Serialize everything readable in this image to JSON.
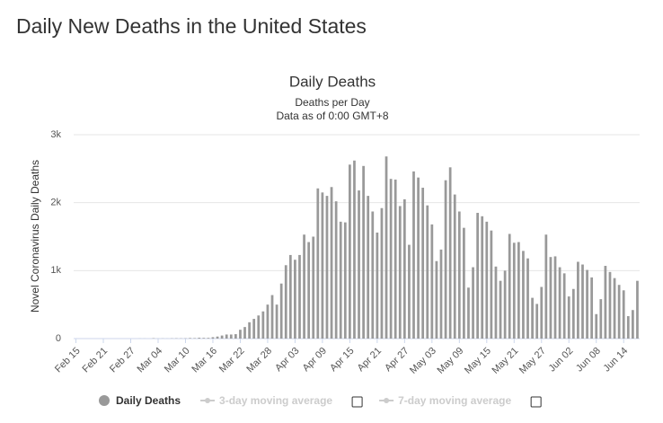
{
  "page_title": "Daily New Deaths in the United States",
  "chart_data": {
    "type": "bar",
    "title": "Daily Deaths",
    "subtitle": "Deaths per Day",
    "subtitle2": "Data as of 0:00 GMT+8",
    "y_label": "Novel Coronavirus Daily Deaths",
    "categories": [
      "Feb 15",
      null,
      null,
      null,
      null,
      null,
      "Feb 21",
      null,
      null,
      null,
      null,
      null,
      "Feb 27",
      null,
      null,
      null,
      null,
      null,
      "Mar 04",
      null,
      null,
      null,
      null,
      null,
      "Mar 10",
      null,
      null,
      null,
      null,
      null,
      "Mar 16",
      null,
      null,
      null,
      null,
      null,
      "Mar 22",
      null,
      null,
      null,
      null,
      null,
      "Mar 28",
      null,
      null,
      null,
      null,
      null,
      "Apr 03",
      null,
      null,
      null,
      null,
      null,
      "Apr 09",
      null,
      null,
      null,
      null,
      null,
      "Apr 15",
      null,
      null,
      null,
      null,
      null,
      "Apr 21",
      null,
      null,
      null,
      null,
      null,
      "Apr 27",
      null,
      null,
      null,
      null,
      null,
      "May 03",
      null,
      null,
      null,
      null,
      null,
      "May 09",
      null,
      null,
      null,
      null,
      null,
      "May 15",
      null,
      null,
      null,
      null,
      null,
      "May 21",
      null,
      null,
      null,
      null,
      null,
      "May 27",
      null,
      null,
      null,
      null,
      null,
      "Jun 02",
      null,
      null,
      null,
      null,
      null,
      "Jun 08",
      null,
      null,
      null,
      null,
      null,
      "Jun 14",
      null,
      null,
      null
    ],
    "series": [
      {
        "name": "Daily Deaths",
        "color": "#999999",
        "values": [
          0,
          0,
          0,
          0,
          0,
          0,
          0,
          0,
          0,
          0,
          0,
          0,
          0,
          0,
          1,
          1,
          0,
          5,
          1,
          2,
          1,
          3,
          4,
          3,
          4,
          8,
          7,
          12,
          10,
          10,
          20,
          30,
          45,
          60,
          60,
          65,
          130,
          170,
          240,
          290,
          340,
          400,
          500,
          640,
          500,
          810,
          1080,
          1230,
          1160,
          1230,
          1530,
          1420,
          1500,
          2210,
          2150,
          2100,
          2230,
          2020,
          1720,
          1710,
          2560,
          2620,
          2180,
          2540,
          2100,
          1870,
          1560,
          1920,
          2680,
          2350,
          2340,
          1950,
          2050,
          1380,
          2460,
          2370,
          2220,
          1960,
          1680,
          1140,
          1310,
          2330,
          2520,
          2120,
          1870,
          1630,
          750,
          1050,
          1850,
          1800,
          1720,
          1590,
          1060,
          850,
          1000,
          1540,
          1410,
          1420,
          1290,
          1180,
          600,
          510,
          760,
          1530,
          1200,
          1210,
          1050,
          960,
          620,
          730,
          1130,
          1090,
          1010,
          900,
          360,
          580,
          1070,
          980,
          890,
          790,
          710,
          330,
          420,
          850
        ]
      }
    ],
    "other_legend_items": [
      "3-day moving average",
      "7-day moving average"
    ],
    "ylim": [
      0,
      3000
    ],
    "yticks": [
      0,
      {
        "value": 1000,
        "label": "1k"
      },
      {
        "value": 2000,
        "label": "2k"
      },
      {
        "value": 3000,
        "label": "3k"
      }
    ],
    "grid": true
  }
}
